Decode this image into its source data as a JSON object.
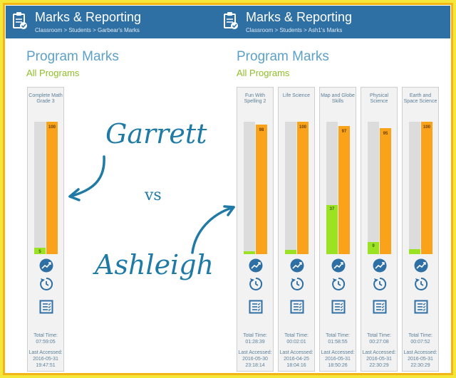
{
  "left_panel": {
    "header": {
      "title": "Marks & Reporting",
      "breadcrumb": "Classroom > Students > Garbear's Marks"
    },
    "program_marks_title": "Program Marks",
    "programs_filter": "All Programs",
    "cards": [
      {
        "name": "Complete Math Grade 3",
        "green_value": "5",
        "green_fraction": 0.05,
        "orange_value": "100",
        "orange_fraction": 1.0,
        "total_time_label": "Total Time:",
        "total_time": "07:59:05",
        "last_accessed_label": "Last Accessed:",
        "last_accessed_date": "2016-05-31",
        "last_accessed_time": "19:47:51"
      }
    ]
  },
  "right_panel": {
    "header": {
      "title": "Marks & Reporting",
      "breadcrumb": "Classroom > Students > Ash1's Marks"
    },
    "program_marks_title": "Program Marks",
    "programs_filter": "All Programs",
    "cards": [
      {
        "name": "Fun With Spelling 2",
        "green_value": "",
        "green_fraction": 0.02,
        "orange_value": "98",
        "orange_fraction": 0.98,
        "total_time_label": "Total Time:",
        "total_time": "01:28:39",
        "last_accessed_label": "Last Accessed:",
        "last_accessed_date": "2016-05-30",
        "last_accessed_time": "23:18:14"
      },
      {
        "name": "Life Science",
        "green_value": "",
        "green_fraction": 0.03,
        "orange_value": "100",
        "orange_fraction": 1.0,
        "total_time_label": "Total Time:",
        "total_time": "00:02:01",
        "last_accessed_label": "Last Accessed:",
        "last_accessed_date": "2016-04-25",
        "last_accessed_time": "18:04:16"
      },
      {
        "name": "Map and Globe Skills",
        "green_value": "37",
        "green_fraction": 0.37,
        "orange_value": "97",
        "orange_fraction": 0.97,
        "total_time_label": "Total Time:",
        "total_time": "01:58:55",
        "last_accessed_label": "Last Accessed:",
        "last_accessed_date": "2016-05-31",
        "last_accessed_time": "18:50:26"
      },
      {
        "name": "Physical Science",
        "green_value": "9",
        "green_fraction": 0.09,
        "orange_value": "95",
        "orange_fraction": 0.95,
        "total_time_label": "Total Time:",
        "total_time": "00:27:08",
        "last_accessed_label": "Last Accessed:",
        "last_accessed_date": "2016-05-31",
        "last_accessed_time": "22:30:29"
      },
      {
        "name": "Earth and Space Science",
        "green_value": "",
        "green_fraction": 0.04,
        "orange_value": "100",
        "orange_fraction": 1.0,
        "total_time_label": "Total Time:",
        "total_time": "00:07:52",
        "last_accessed_label": "Last Accessed:",
        "last_accessed_date": "2016-05-31",
        "last_accessed_time": "22:30:29"
      }
    ]
  },
  "overlay": {
    "name1": "Garrett",
    "versus": "vs",
    "name2": "Ashleigh"
  },
  "colors": {
    "header_blue": "#2e6fa4",
    "title_blue": "#5ea1c8",
    "subtitle_green": "#8fbf27",
    "bar_green": "#9be225",
    "bar_orange": "#f9a21a",
    "frame_yellow": "#f5e63a",
    "frame_orange": "#f3b619",
    "script_blue": "#1f7aa6"
  },
  "icons": {
    "header": "clipboard-check-icon",
    "card_row1": "trend-chart-icon",
    "card_row2": "history-icon",
    "card_row3": "report-list-icon",
    "arrows": "curved-arrow-icon"
  }
}
